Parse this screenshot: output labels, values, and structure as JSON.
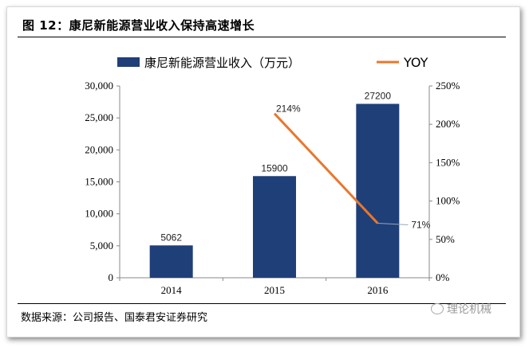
{
  "figure": {
    "title": "图 12：康尼新能源营业收入保持高速增长",
    "source": "数据来源：公司报告、国泰君安证券研究",
    "watermark": "理论机械"
  },
  "colors": {
    "bar": "#1f3f78",
    "line": "#e8772e",
    "axis": "#888888"
  },
  "chart_data": {
    "type": "bar",
    "categories": [
      "2014",
      "2015",
      "2016"
    ],
    "series": [
      {
        "name": "康尼新能源营业收入（万元）",
        "type": "bar",
        "axis": "left",
        "values": [
          5062,
          15900,
          27200
        ],
        "labels": [
          "5062",
          "15900",
          "27200"
        ]
      },
      {
        "name": "YOY",
        "type": "line",
        "axis": "right",
        "values": [
          null,
          214,
          71
        ],
        "labels": [
          "",
          "214%",
          "71%"
        ]
      }
    ],
    "ylim": [
      0,
      30000
    ],
    "yticks": [
      "0",
      "5,000",
      "10,000",
      "15,000",
      "20,000",
      "25,000",
      "30,000"
    ],
    "y2lim": [
      0,
      250
    ],
    "y2ticks": [
      "0%",
      "50%",
      "100%",
      "150%",
      "200%",
      "250%"
    ],
    "legend": "top"
  }
}
